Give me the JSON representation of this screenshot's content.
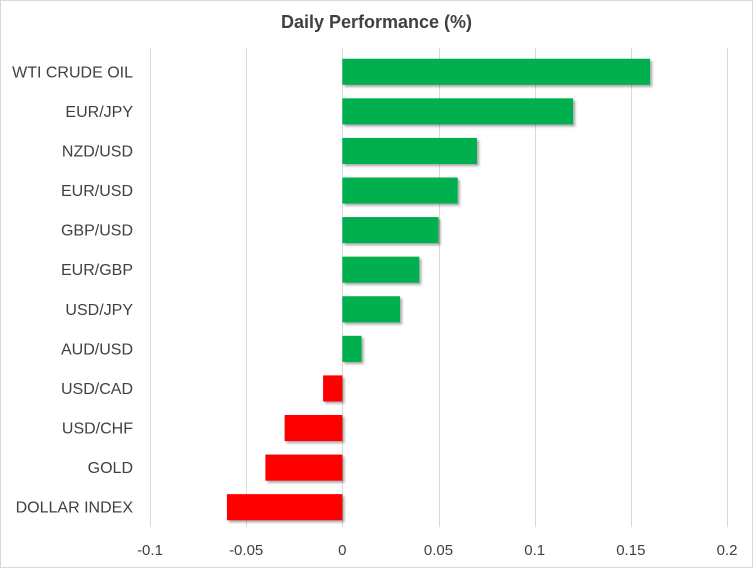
{
  "chart_data": {
    "type": "bar",
    "orientation": "horizontal",
    "title": "Daily Performance (%)",
    "xlabel": "",
    "ylabel": "",
    "xlim": [
      -0.1,
      0.2
    ],
    "x_ticks": [
      -0.1,
      -0.05,
      0,
      0.05,
      0.1,
      0.15,
      0.2
    ],
    "x_tick_labels": [
      "-0.1",
      "-0.05",
      "0",
      "0.05",
      "0.1",
      "0.15",
      "0.2"
    ],
    "grid": "vertical",
    "legend": "none",
    "categories": [
      "WTI CRUDE OIL",
      "EUR/JPY",
      "NZD/USD",
      "EUR/USD",
      "GBP/USD",
      "EUR/GBP",
      "USD/JPY",
      "AUD/USD",
      "USD/CAD",
      "USD/CHF",
      "GOLD",
      "DOLLAR INDEX"
    ],
    "values": [
      0.16,
      0.12,
      0.07,
      0.06,
      0.05,
      0.04,
      0.03,
      0.01,
      -0.01,
      -0.03,
      -0.04,
      -0.06
    ],
    "colors": {
      "positive": "#00b050",
      "negative": "#ff0000",
      "grid": "#d9d9d9",
      "text": "#404040"
    }
  }
}
